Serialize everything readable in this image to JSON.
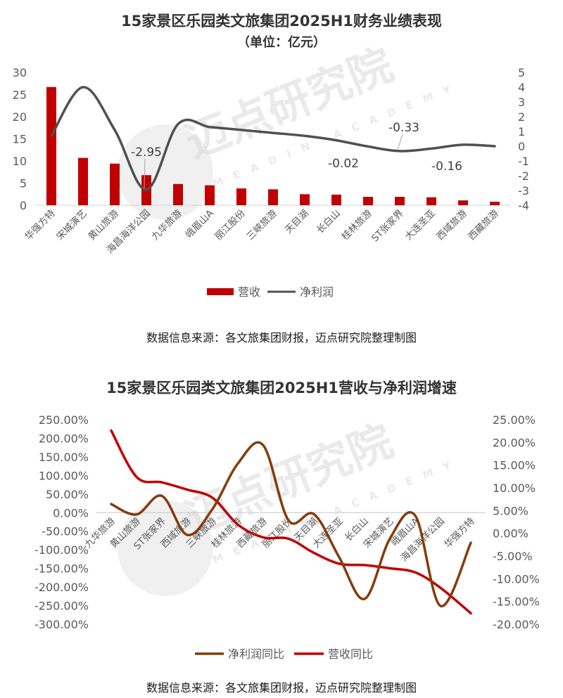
{
  "chart_data": [
    {
      "type": "bar",
      "title": "15家景区乐园类文旅集团2025H1财务业绩表现",
      "subtitle": "（单位：亿元）",
      "categories": [
        "华强方特",
        "宋城演艺",
        "黄山旅游",
        "海昌海洋公园",
        "九华旅游",
        "峨眉山A",
        "丽江股份",
        "三峡旅游",
        "天目湖",
        "长白山",
        "桂林旅游",
        "ST张家界",
        "大连圣亚",
        "西域旅游",
        "西藏旅游"
      ],
      "series": [
        {
          "name": "营收",
          "type": "bar",
          "axis": "left",
          "color": "#c00000",
          "values": [
            26.7,
            10.7,
            9.4,
            6.8,
            4.8,
            4.5,
            3.8,
            3.6,
            2.5,
            2.4,
            1.9,
            1.9,
            1.8,
            1.1,
            0.8
          ]
        },
        {
          "name": "净利润",
          "type": "line",
          "axis": "right",
          "color": "#505050",
          "values": [
            0.7,
            4.0,
            1.1,
            -2.95,
            1.5,
            1.3,
            1.1,
            0.9,
            0.7,
            0.4,
            -0.02,
            -0.33,
            -0.16,
            0.1,
            0.0
          ]
        }
      ],
      "data_labels": [
        {
          "category": "海昌海洋公园",
          "series": "净利润",
          "text": "-2.95"
        },
        {
          "category": "桂林旅游",
          "series": "净利润",
          "text": "-0.02"
        },
        {
          "category": "ST张家界",
          "series": "净利润",
          "text": "-0.33"
        },
        {
          "category": "大连圣亚",
          "series": "净利润",
          "text": "-0.16"
        }
      ],
      "left_axis": {
        "ticks": [
          "30",
          "25",
          "20",
          "15",
          "10",
          "5",
          "0"
        ],
        "ylim": [
          0,
          30
        ]
      },
      "right_axis": {
        "ticks": [
          "5",
          "4",
          "3",
          "2",
          "1",
          "0",
          "-1",
          "-2",
          "-3",
          "-4"
        ],
        "ylim": [
          -4,
          5
        ]
      },
      "legend": [
        {
          "label": "营收",
          "kind": "bar"
        },
        {
          "label": "净利润",
          "kind": "line"
        }
      ],
      "legend_position": "bottom",
      "grid": false,
      "source": "数据信息来源：各文旅集团财报，迈点研究院整理制图"
    },
    {
      "type": "line",
      "title": "15家景区乐园类文旅集团2025H1营收与净利润增速",
      "categories": [
        "九华旅游",
        "黄山旅游",
        "ST张家界",
        "西域旅游",
        "三峡旅游",
        "桂林旅游",
        "西藏旅游",
        "丽江股份",
        "天目湖",
        "大连圣亚",
        "长白山",
        "宋城演艺",
        "峨眉山A",
        "海昌海洋公园",
        "华强方特"
      ],
      "series": [
        {
          "name": "净利润同比",
          "axis": "left",
          "color": "#843c0c",
          "unit": "%",
          "values": [
            23,
            -5,
            45,
            -60,
            10,
            132,
            181,
            -21,
            -4,
            -120,
            -232,
            -70,
            -8,
            -251,
            -81
          ]
        },
        {
          "name": "营收同比",
          "axis": "right",
          "color": "#c00000",
          "unit": "%",
          "values": [
            22.6,
            12.4,
            11.2,
            9.6,
            7.8,
            1.9,
            -0.9,
            -1.2,
            -4.3,
            -6.7,
            -7.0,
            -7.7,
            -8.6,
            -12.0,
            -17.6
          ]
        }
      ],
      "left_axis": {
        "ticks": [
          "250.00%",
          "200.00%",
          "150.00%",
          "100.00%",
          "50.00%",
          "0.00%",
          "-50.00%",
          "-100.00%",
          "-150.00%",
          "-200.00%",
          "-250.00%",
          "-300.00%"
        ],
        "ylim": [
          -300,
          250
        ]
      },
      "right_axis": {
        "ticks": [
          "25.00%",
          "20.00%",
          "15.00%",
          "10.00%",
          "5.00%",
          "0.00%",
          "-5.00%",
          "-10.00%",
          "-15.00%",
          "-20.00%"
        ],
        "ylim": [
          -20,
          25
        ]
      },
      "legend": [
        {
          "label": "净利润同比"
        },
        {
          "label": "营收同比"
        }
      ],
      "legend_position": "bottom",
      "grid": false,
      "source": "数据信息来源：各文旅集团财报，迈点研究院整理制图"
    }
  ],
  "watermark": {
    "cn": "迈点研究院",
    "en": "MEADIN ACADEMY"
  },
  "chart1": {
    "title": "15家景区乐园类文旅集团2025H1财务业绩表现",
    "subtitle": "（单位：亿元）",
    "legend_bar": "营收",
    "legend_line": "净利润",
    "source": "数据信息来源：各文旅集团财报，迈点研究院整理制图"
  },
  "chart2": {
    "title": "15家景区乐园类文旅集团2025H1营收与净利润增速",
    "legend_profit": "净利润同比",
    "legend_revenue": "营收同比",
    "source": "数据信息来源：各文旅集团财报，迈点研究院整理制图"
  }
}
